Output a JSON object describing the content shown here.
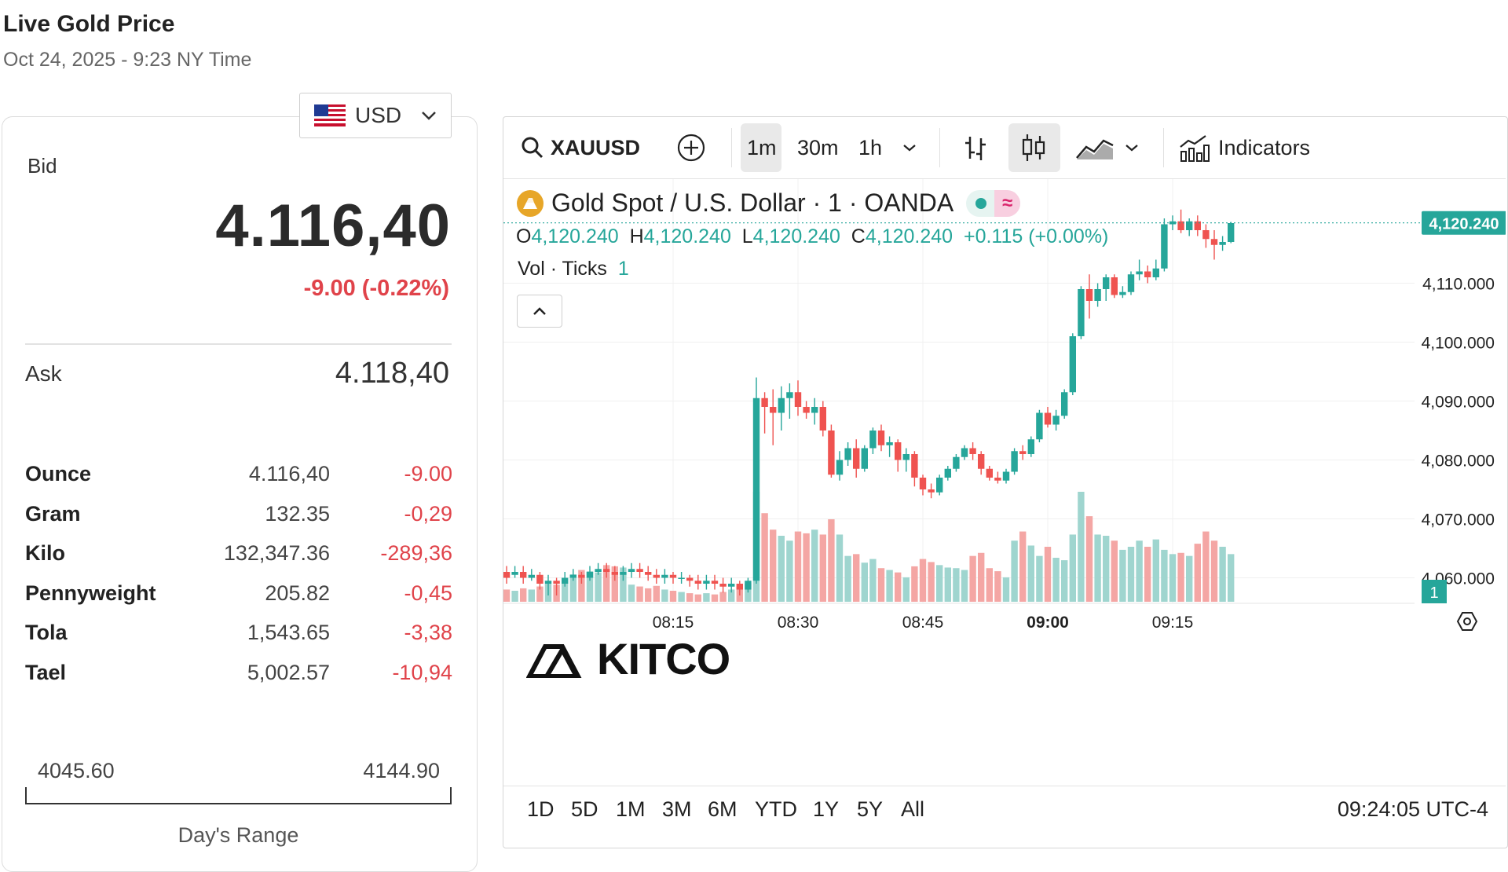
{
  "header": {
    "title": "Live Gold Price",
    "date": "Oct 24, 2025 - 9:23 NY Time"
  },
  "currency": {
    "code": "USD",
    "icon": "us-flag-icon"
  },
  "bid": {
    "label": "Bid",
    "value": "4.116,40",
    "change": "-9.00 (-0.22%)"
  },
  "ask": {
    "label": "Ask",
    "value": "4.118,40"
  },
  "units": [
    {
      "unit": "Ounce",
      "price": "4.116,40",
      "change": "-9.00"
    },
    {
      "unit": "Gram",
      "price": "132.35",
      "change": "-0,29"
    },
    {
      "unit": "Kilo",
      "price": "132,347.36",
      "change": "-289,36"
    },
    {
      "unit": "Pennyweight",
      "price": "205.82",
      "change": "-0,45"
    },
    {
      "unit": "Tola",
      "price": "1,543.65",
      "change": "-3,38"
    },
    {
      "unit": "Tael",
      "price": "5,002.57",
      "change": "-10,94"
    }
  ],
  "days_range": {
    "low": "4045.60",
    "high": "4144.90",
    "label": "Day's Range"
  },
  "toolbar": {
    "symbol": "XAUUSD",
    "intervals": [
      "1m",
      "30m",
      "1h"
    ],
    "active_interval": "1m",
    "indicators_label": "Indicators"
  },
  "chart_header": {
    "title": "Gold Spot / U.S. Dollar · 1 · OANDA",
    "ohlc": {
      "o_label": "O",
      "o": "4,120.240",
      "h_label": "H",
      "h": "4,120.240",
      "l_label": "L",
      "l": "4,120.240",
      "c_label": "C",
      "c": "4,120.240",
      "change": "+0.115 (+0.00%)"
    },
    "vol_label": "Vol · Ticks",
    "vol_value": "1"
  },
  "price_tag": "4,120.240",
  "vol_tag": "1",
  "watermark": "KITCO",
  "time_ranges": [
    "1D",
    "5D",
    "1M",
    "3M",
    "6M",
    "YTD",
    "1Y",
    "5Y",
    "All"
  ],
  "clock": "09:24:05 UTC-4",
  "colors": {
    "up": "#26a69a",
    "down": "#ef5350",
    "up_vol": "#9fd5cf",
    "down_vol": "#f4a6a4",
    "accent_red": "#e0434a"
  },
  "chart_data": {
    "type": "candlestick",
    "y_ticks": [
      "4,110.000",
      "4,100.000",
      "4,090.000",
      "4,080.000",
      "4,070.000",
      "4,060.000"
    ],
    "ylim": [
      4053,
      4125
    ],
    "x_ticks": [
      "08:15",
      "08:30",
      "08:45",
      "09:00",
      "09:15"
    ],
    "x_tick_minutes": [
      20,
      35,
      50,
      65,
      80
    ],
    "candles": [
      {
        "o": 4061.0,
        "c": 4060.0,
        "h": 4062.0,
        "l": 4059.0,
        "v": 20
      },
      {
        "o": 4060.5,
        "c": 4061.0,
        "h": 4062.0,
        "l": 4060.0,
        "v": 18
      },
      {
        "o": 4061.0,
        "c": 4060.0,
        "h": 4062.0,
        "l": 4059.0,
        "v": 22
      },
      {
        "o": 4060.0,
        "c": 4060.5,
        "h": 4061.5,
        "l": 4059.5,
        "v": 20
      },
      {
        "o": 4060.5,
        "c": 4059.0,
        "h": 4061.0,
        "l": 4058.0,
        "v": 25
      },
      {
        "o": 4059.0,
        "c": 4059.5,
        "h": 4060.5,
        "l": 4057.0,
        "v": 30
      },
      {
        "o": 4059.5,
        "c": 4059.0,
        "h": 4060.0,
        "l": 4057.0,
        "v": 28
      },
      {
        "o": 4059.0,
        "c": 4060.0,
        "h": 4061.0,
        "l": 4058.5,
        "v": 30
      },
      {
        "o": 4060.0,
        "c": 4060.5,
        "h": 4061.5,
        "l": 4059.5,
        "v": 45
      },
      {
        "o": 4060.5,
        "c": 4060.0,
        "h": 4061.0,
        "l": 4059.0,
        "v": 52
      },
      {
        "o": 4060.0,
        "c": 4061.0,
        "h": 4062.0,
        "l": 4059.5,
        "v": 50
      },
      {
        "o": 4061.0,
        "c": 4061.5,
        "h": 4062.5,
        "l": 4060.5,
        "v": 48
      },
      {
        "o": 4061.5,
        "c": 4061.0,
        "h": 4062.5,
        "l": 4060.0,
        "v": 60
      },
      {
        "o": 4061.0,
        "c": 4060.5,
        "h": 4062.0,
        "l": 4059.5,
        "v": 58
      },
      {
        "o": 4060.5,
        "c": 4061.0,
        "h": 4062.0,
        "l": 4059.5,
        "v": 56
      },
      {
        "o": 4061.0,
        "c": 4061.5,
        "h": 4062.5,
        "l": 4060.0,
        "v": 28
      },
      {
        "o": 4061.5,
        "c": 4061.0,
        "h": 4062.5,
        "l": 4060.0,
        "v": 25
      },
      {
        "o": 4061.0,
        "c": 4060.5,
        "h": 4062.0,
        "l": 4059.5,
        "v": 22
      },
      {
        "o": 4060.5,
        "c": 4060.0,
        "h": 4061.5,
        "l": 4059.0,
        "v": 26
      },
      {
        "o": 4060.0,
        "c": 4060.5,
        "h": 4061.5,
        "l": 4059.0,
        "v": 20
      },
      {
        "o": 4060.5,
        "c": 4060.0,
        "h": 4061.0,
        "l": 4059.0,
        "v": 18
      },
      {
        "o": 4060.0,
        "c": 4060.0,
        "h": 4061.0,
        "l": 4059.0,
        "v": 16
      },
      {
        "o": 4060.0,
        "c": 4059.5,
        "h": 4060.5,
        "l": 4058.5,
        "v": 14
      },
      {
        "o": 4059.5,
        "c": 4059.0,
        "h": 4060.5,
        "l": 4058.0,
        "v": 12
      },
      {
        "o": 4059.0,
        "c": 4059.5,
        "h": 4060.5,
        "l": 4058.0,
        "v": 14
      },
      {
        "o": 4059.5,
        "c": 4059.0,
        "h": 4060.5,
        "l": 4058.0,
        "v": 12
      },
      {
        "o": 4059.0,
        "c": 4058.5,
        "h": 4060.0,
        "l": 4057.5,
        "v": 16
      },
      {
        "o": 4058.5,
        "c": 4059.0,
        "h": 4060.0,
        "l": 4057.5,
        "v": 20
      },
      {
        "o": 4059.0,
        "c": 4058.0,
        "h": 4059.5,
        "l": 4057.0,
        "v": 25
      },
      {
        "o": 4058.0,
        "c": 4059.5,
        "h": 4060.0,
        "l": 4057.5,
        "v": 30
      },
      {
        "o": 4059.5,
        "c": 4090.5,
        "h": 4094.0,
        "l": 4059.0,
        "v": 180
      },
      {
        "o": 4090.5,
        "c": 4089.0,
        "h": 4091.5,
        "l": 4084.5,
        "v": 145
      },
      {
        "o": 4089.0,
        "c": 4088.0,
        "h": 4092.0,
        "l": 4082.5,
        "v": 118
      },
      {
        "o": 4088.0,
        "c": 4090.5,
        "h": 4092.5,
        "l": 4085.0,
        "v": 108
      },
      {
        "o": 4090.5,
        "c": 4091.5,
        "h": 4093.0,
        "l": 4087.0,
        "v": 100
      },
      {
        "o": 4091.5,
        "c": 4089.0,
        "h": 4093.5,
        "l": 4087.5,
        "v": 115
      },
      {
        "o": 4089.0,
        "c": 4088.0,
        "h": 4090.0,
        "l": 4087.0,
        "v": 112
      },
      {
        "o": 4088.0,
        "c": 4089.0,
        "h": 4090.5,
        "l": 4086.0,
        "v": 118
      },
      {
        "o": 4089.0,
        "c": 4085.0,
        "h": 4090.0,
        "l": 4084.0,
        "v": 110
      },
      {
        "o": 4085.0,
        "c": 4077.5,
        "h": 4086.0,
        "l": 4077.0,
        "v": 135
      },
      {
        "o": 4077.5,
        "c": 4080.0,
        "h": 4081.5,
        "l": 4076.5,
        "v": 110
      },
      {
        "o": 4080.0,
        "c": 4082.0,
        "h": 4083.0,
        "l": 4079.0,
        "v": 75
      },
      {
        "o": 4082.0,
        "c": 4078.5,
        "h": 4083.5,
        "l": 4077.0,
        "v": 78
      },
      {
        "o": 4078.5,
        "c": 4082.0,
        "h": 4082.5,
        "l": 4078.0,
        "v": 64
      },
      {
        "o": 4082.0,
        "c": 4085.0,
        "h": 4085.5,
        "l": 4081.0,
        "v": 70
      },
      {
        "o": 4085.0,
        "c": 4082.5,
        "h": 4086.0,
        "l": 4081.5,
        "v": 55
      },
      {
        "o": 4082.5,
        "c": 4083.0,
        "h": 4084.0,
        "l": 4080.5,
        "v": 52
      },
      {
        "o": 4083.0,
        "c": 4080.0,
        "h": 4083.5,
        "l": 4078.0,
        "v": 48
      },
      {
        "o": 4080.0,
        "c": 4081.0,
        "h": 4082.0,
        "l": 4078.0,
        "v": 40
      },
      {
        "o": 4081.0,
        "c": 4077.0,
        "h": 4081.5,
        "l": 4075.5,
        "v": 58
      },
      {
        "o": 4077.0,
        "c": 4075.0,
        "h": 4077.5,
        "l": 4074.0,
        "v": 70
      },
      {
        "o": 4075.0,
        "c": 4074.5,
        "h": 4076.0,
        "l": 4073.5,
        "v": 65
      },
      {
        "o": 4074.5,
        "c": 4077.0,
        "h": 4077.5,
        "l": 4074.0,
        "v": 60
      },
      {
        "o": 4077.0,
        "c": 4078.5,
        "h": 4079.0,
        "l": 4076.5,
        "v": 56
      },
      {
        "o": 4078.5,
        "c": 4080.5,
        "h": 4081.0,
        "l": 4078.0,
        "v": 55
      },
      {
        "o": 4080.5,
        "c": 4082.0,
        "h": 4082.5,
        "l": 4080.0,
        "v": 52
      },
      {
        "o": 4082.0,
        "c": 4081.0,
        "h": 4083.0,
        "l": 4080.0,
        "v": 75
      },
      {
        "o": 4081.0,
        "c": 4078.5,
        "h": 4081.5,
        "l": 4077.5,
        "v": 80
      },
      {
        "o": 4078.5,
        "c": 4077.0,
        "h": 4079.0,
        "l": 4076.5,
        "v": 55
      },
      {
        "o": 4077.0,
        "c": 4076.5,
        "h": 4078.0,
        "l": 4076.0,
        "v": 50
      },
      {
        "o": 4076.5,
        "c": 4078.0,
        "h": 4078.5,
        "l": 4076.0,
        "v": 40
      },
      {
        "o": 4078.0,
        "c": 4081.5,
        "h": 4082.0,
        "l": 4077.5,
        "v": 100
      },
      {
        "o": 4081.5,
        "c": 4081.0,
        "h": 4082.5,
        "l": 4080.0,
        "v": 115
      },
      {
        "o": 4081.0,
        "c": 4083.5,
        "h": 4084.0,
        "l": 4080.5,
        "v": 92
      },
      {
        "o": 4083.5,
        "c": 4088.0,
        "h": 4088.5,
        "l": 4083.0,
        "v": 75
      },
      {
        "o": 4088.0,
        "c": 4086.0,
        "h": 4089.0,
        "l": 4085.5,
        "v": 90
      },
      {
        "o": 4086.0,
        "c": 4087.5,
        "h": 4088.5,
        "l": 4085.0,
        "v": 72
      },
      {
        "o": 4087.5,
        "c": 4091.5,
        "h": 4092.0,
        "l": 4087.0,
        "v": 68
      },
      {
        "o": 4091.5,
        "c": 4101.0,
        "h": 4101.5,
        "l": 4091.0,
        "v": 110
      },
      {
        "o": 4101.0,
        "c": 4109.0,
        "h": 4109.5,
        "l": 4100.5,
        "v": 180
      },
      {
        "o": 4109.0,
        "c": 4107.0,
        "h": 4111.5,
        "l": 4104.0,
        "v": 140
      },
      {
        "o": 4107.0,
        "c": 4109.0,
        "h": 4110.0,
        "l": 4106.0,
        "v": 110
      },
      {
        "o": 4109.0,
        "c": 4111.0,
        "h": 4111.5,
        "l": 4107.0,
        "v": 108
      },
      {
        "o": 4111.0,
        "c": 4108.0,
        "h": 4111.5,
        "l": 4107.5,
        "v": 100
      },
      {
        "o": 4108.0,
        "c": 4108.5,
        "h": 4109.5,
        "l": 4107.5,
        "v": 85
      },
      {
        "o": 4108.5,
        "c": 4111.5,
        "h": 4112.0,
        "l": 4108.0,
        "v": 90
      },
      {
        "o": 4111.5,
        "c": 4112.0,
        "h": 4114.0,
        "l": 4110.5,
        "v": 100
      },
      {
        "o": 4112.0,
        "c": 4111.0,
        "h": 4113.0,
        "l": 4110.0,
        "v": 90
      },
      {
        "o": 4111.0,
        "c": 4112.5,
        "h": 4114.0,
        "l": 4110.5,
        "v": 102
      },
      {
        "o": 4112.5,
        "c": 4120.0,
        "h": 4121.0,
        "l": 4112.0,
        "v": 85
      },
      {
        "o": 4120.0,
        "c": 4120.5,
        "h": 4121.5,
        "l": 4119.0,
        "v": 78
      },
      {
        "o": 4120.5,
        "c": 4119.0,
        "h": 4122.5,
        "l": 4118.5,
        "v": 80
      },
      {
        "o": 4119.0,
        "c": 4120.5,
        "h": 4121.0,
        "l": 4118.0,
        "v": 75
      },
      {
        "o": 4120.5,
        "c": 4119.0,
        "h": 4121.5,
        "l": 4118.0,
        "v": 95
      },
      {
        "o": 4119.0,
        "c": 4117.5,
        "h": 4120.0,
        "l": 4116.0,
        "v": 115
      },
      {
        "o": 4117.5,
        "c": 4116.5,
        "h": 4119.0,
        "l": 4114.0,
        "v": 100
      },
      {
        "o": 4116.5,
        "c": 4117.0,
        "h": 4118.0,
        "l": 4115.5,
        "v": 90
      },
      {
        "o": 4117.0,
        "c": 4120.2,
        "h": 4120.4,
        "l": 4116.8,
        "v": 78
      }
    ]
  }
}
